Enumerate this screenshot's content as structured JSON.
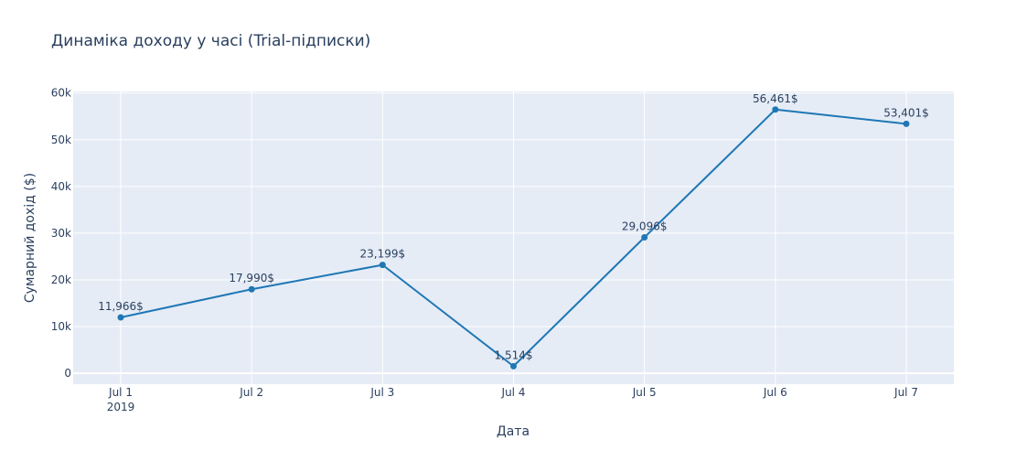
{
  "chart_data": {
    "type": "line",
    "title": "Динаміка доходу у часі (Trial-підписки)",
    "xlabel": "Дата",
    "ylabel": "Сумарний дохід ($)",
    "x": [
      "2019-07-01",
      "2019-07-02",
      "2019-07-03",
      "2019-07-04",
      "2019-07-05",
      "2019-07-06",
      "2019-07-07"
    ],
    "x_tick_labels": [
      "Jul 1",
      "Jul 2",
      "Jul 3",
      "Jul 4",
      "Jul 5",
      "Jul 6",
      "Jul 7"
    ],
    "x_tick_sublabel": "2019",
    "series": [
      {
        "values": [
          11966,
          17990,
          23199,
          1514,
          29096,
          56461,
          53401
        ],
        "labels": [
          "11,966$",
          "17,990$",
          "23,199$",
          "1,514$",
          "29,096$",
          "56,461$",
          "53,401$"
        ]
      }
    ],
    "ylim": [
      -2333,
      60333
    ],
    "y_ticks": [
      0,
      10000,
      20000,
      30000,
      40000,
      50000,
      60000
    ],
    "y_tick_labels": [
      "0",
      "10k",
      "20k",
      "30k",
      "40k",
      "50k",
      "60k"
    ],
    "grid": true,
    "colors": {
      "line": "#1f77b4",
      "plot_bg": "#e5ecf6",
      "grid": "#ffffff",
      "text": "#2a3f5f",
      "paper_bg": "#ffffff"
    }
  }
}
